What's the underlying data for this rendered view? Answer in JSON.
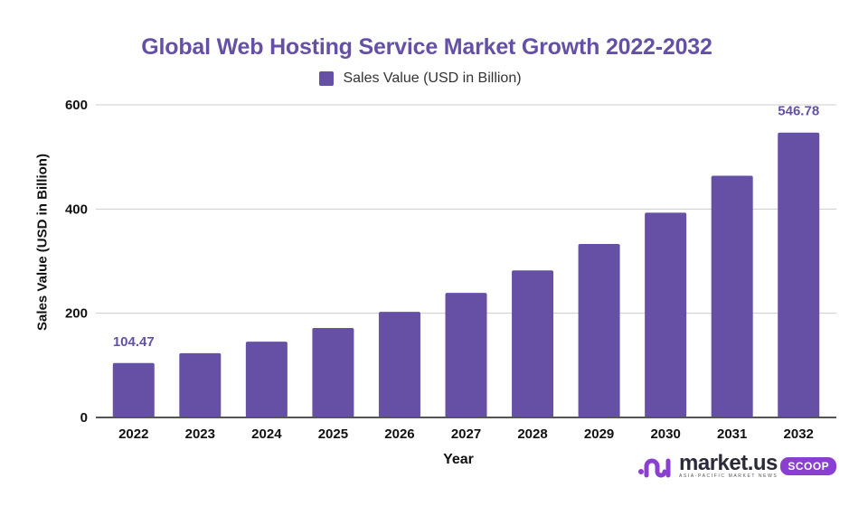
{
  "chart_data": {
    "type": "bar",
    "title": "Global Web Hosting Service Market Growth 2022-2032",
    "legend": {
      "entries": [
        "Sales Value (USD in Billion)"
      ],
      "placement": "top-center"
    },
    "xlabel": "Year",
    "ylabel": "Sales Value (USD in Billion)",
    "categories": [
      "2022",
      "2023",
      "2024",
      "2025",
      "2026",
      "2027",
      "2028",
      "2029",
      "2030",
      "2031",
      "2032"
    ],
    "series": [
      {
        "name": "Sales Value (USD in Billion)",
        "values": [
          104.47,
          123.3,
          145.5,
          171.7,
          202.6,
          239.1,
          282.2,
          333.0,
          393.0,
          463.8,
          546.78
        ],
        "color": "#6550a6"
      }
    ],
    "data_labels": [
      {
        "category": "2022",
        "text": "104.47"
      },
      {
        "category": "2032",
        "text": "546.78"
      }
    ],
    "ylim": [
      0,
      600
    ],
    "yticks": [
      0,
      200,
      400,
      600
    ],
    "grid": true
  },
  "branding": {
    "name": "market.us",
    "tagline": "ASIA-PACIFIC MARKET NEWS",
    "badge": "SCOOP",
    "badge_color": "#8a3fd1"
  }
}
